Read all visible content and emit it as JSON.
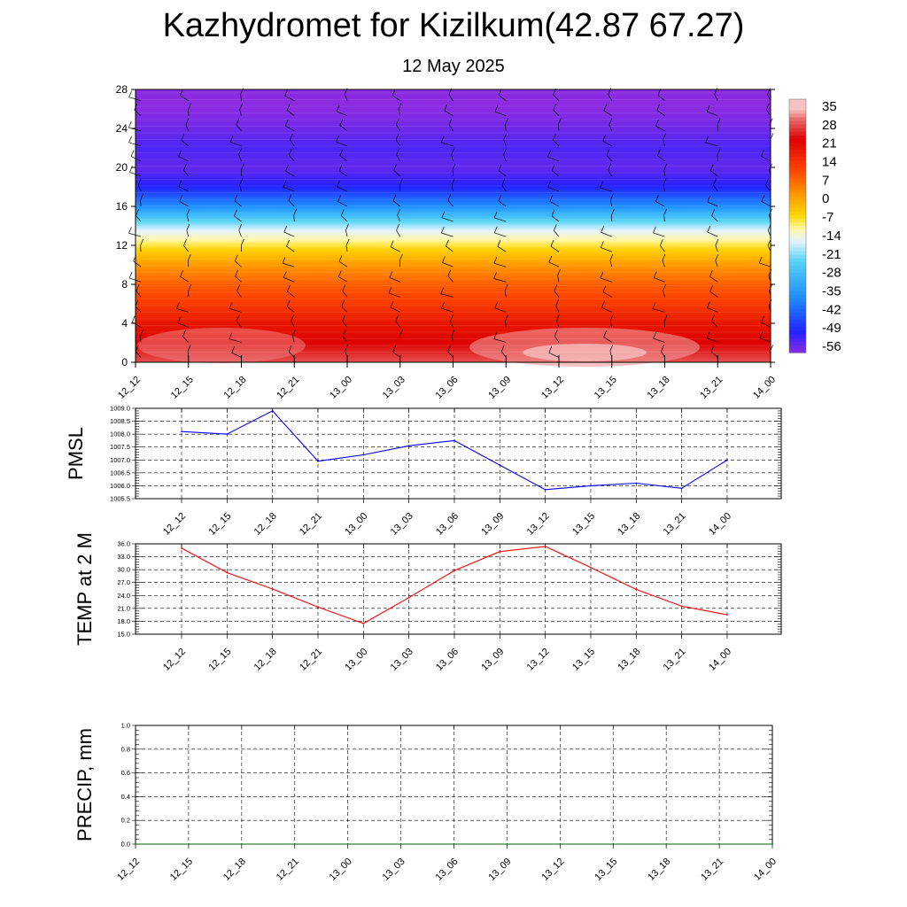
{
  "title": "Kazhydromet for Kizilkum(42.87 67.27)",
  "subtitle": "12 May 2025",
  "colors": {
    "pmsl_line": "#0000ff",
    "temp_line": "#ff0000",
    "precip_line": "#006400",
    "grid": "#000000"
  },
  "chart_data": [
    {
      "type": "heatmap",
      "x_categories": [
        "12_12",
        "12_15",
        "12_18",
        "12_21",
        "13_00",
        "13_03",
        "13_06",
        "13_09",
        "13_12",
        "13_15",
        "13_18",
        "13_21",
        "14_00"
      ],
      "y_ticks": [
        0,
        4,
        8,
        12,
        16,
        20,
        24,
        28
      ],
      "ylim": [
        0,
        28
      ],
      "colorbar": {
        "labels": [
          "35",
          "28",
          "21",
          "14",
          "7",
          "0",
          "-7",
          "-14",
          "-21",
          "-28",
          "-35",
          "-42",
          "-49",
          "-56"
        ],
        "range": [
          -60,
          40
        ],
        "stops": [
          {
            "v": -60,
            "c": "#8a2be2"
          },
          {
            "v": -52,
            "c": "#2222ff"
          },
          {
            "v": -38,
            "c": "#1e90ff"
          },
          {
            "v": -24,
            "c": "#56d4f5"
          },
          {
            "v": -16,
            "c": "#e6f4ff"
          },
          {
            "v": -11,
            "c": "#fff6a0"
          },
          {
            "v": -6,
            "c": "#ffd700"
          },
          {
            "v": 2,
            "c": "#ff9a00"
          },
          {
            "v": 12,
            "c": "#ff4500"
          },
          {
            "v": 24,
            "c": "#dd0000"
          },
          {
            "v": 32,
            "c": "#e86a6a"
          },
          {
            "v": 36,
            "c": "#f7c2c2"
          }
        ]
      },
      "grid": true,
      "wind_barbs": true
    },
    {
      "type": "line",
      "ylabel": "PMSL",
      "x": [
        "12_12",
        "12_15",
        "12_18",
        "12_21",
        "13_00",
        "13_03",
        "13_06",
        "13_09",
        "13_12",
        "13_15",
        "13_18",
        "13_21",
        "14_00"
      ],
      "values": [
        1008.1,
        1008.0,
        1008.9,
        1006.95,
        1007.2,
        1007.55,
        1007.75,
        1006.8,
        1005.85,
        1006.0,
        1006.1,
        1005.9,
        1007.0
      ],
      "ylim": [
        1005.5,
        1009.0
      ],
      "y_ticks": [
        "1005.5",
        "1006.0",
        "1006.5",
        "1007.0",
        "1007.5",
        "1008.0",
        "1008.5",
        "1009.0"
      ],
      "grid": true,
      "color": "#0000ff"
    },
    {
      "type": "line",
      "ylabel": "TEMP at 2 M",
      "x": [
        "12_12",
        "12_15",
        "12_18",
        "12_21",
        "13_00",
        "13_03",
        "13_06",
        "13_09",
        "13_12",
        "13_15",
        "13_18",
        "13_21",
        "14_00"
      ],
      "values": [
        35.0,
        29.3,
        25.5,
        21.3,
        17.5,
        23.5,
        29.8,
        34.2,
        35.4,
        30.5,
        25.4,
        21.5,
        19.5
      ],
      "ylim": [
        15.0,
        36.0
      ],
      "y_ticks": [
        "15.0",
        "18.0",
        "21.0",
        "24.0",
        "27.0",
        "30.0",
        "33.0",
        "36.0"
      ],
      "grid": true,
      "color": "#ff0000"
    },
    {
      "type": "line",
      "ylabel": "PRECIP, mm",
      "x": [
        "12_12",
        "12_15",
        "12_18",
        "12_21",
        "13_00",
        "13_03",
        "13_06",
        "13_09",
        "13_12",
        "13_15",
        "13_18",
        "13_21",
        "14_00"
      ],
      "values": [
        0,
        0,
        0,
        0,
        0,
        0,
        0,
        0,
        0,
        0,
        0,
        0,
        0
      ],
      "ylim": [
        0.0,
        1.0
      ],
      "y_ticks": [
        "0.0",
        "0.2",
        "0.4",
        "0.6",
        "0.8",
        "1.0"
      ],
      "grid": true,
      "color": "#006400"
    }
  ]
}
